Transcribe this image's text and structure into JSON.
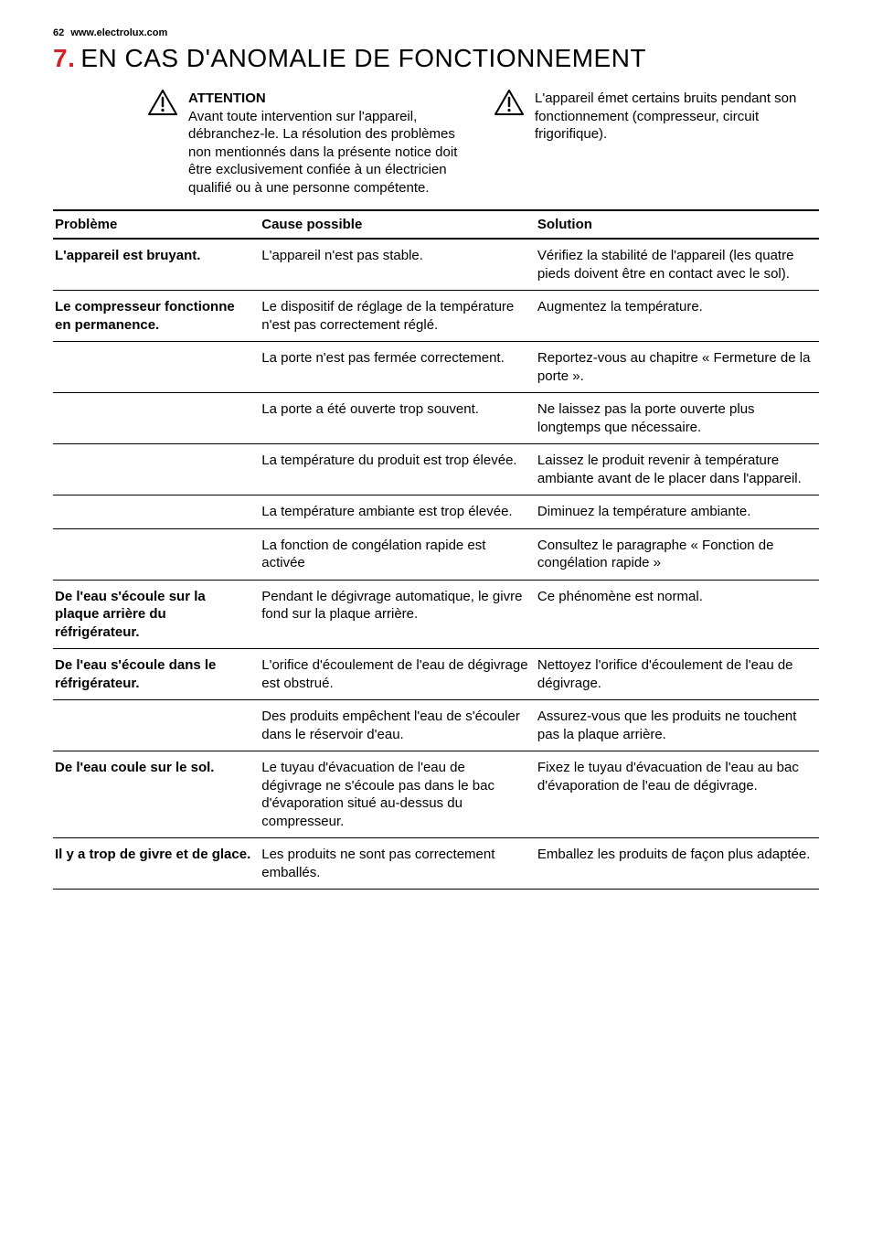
{
  "header": {
    "page_number": "62",
    "site": "www.electrolux.com"
  },
  "title": {
    "number": "7.",
    "text": "EN CAS D'ANOMALIE DE FONCTIONNEMENT"
  },
  "intro": {
    "left": {
      "heading": "ATTENTION",
      "body": "Avant toute intervention sur l'appareil, débranchez-le.\nLa résolution des problèmes non mentionnés dans la présente notice doit être exclusivement confiée à un électricien qualifié ou à une personne compétente."
    },
    "right": {
      "body": "L'appareil émet certains bruits pendant son fonctionnement (compresseur, circuit frigorifique)."
    }
  },
  "table": {
    "headers": {
      "problem": "Problème",
      "cause": "Cause possible",
      "solution": "Solution"
    },
    "rows": [
      {
        "problem": "L'appareil est bruyant.",
        "cause": "L'appareil n'est pas stable.",
        "solution": "Vérifiez la stabilité de l'appareil (les quatre pieds doivent être en contact avec le sol)."
      },
      {
        "problem": "Le compresseur fonctionne en permanence.",
        "cause": "Le dispositif de réglage de la température n'est pas correctement réglé.",
        "solution": "Augmentez la température."
      },
      {
        "problem": "",
        "cause": "La porte n'est pas fermée correctement.",
        "solution": "Reportez-vous au chapitre « Fermeture de la porte »."
      },
      {
        "problem": "",
        "cause": "La porte a été ouverte trop souvent.",
        "solution": "Ne laissez pas la porte ouverte plus longtemps que nécessaire."
      },
      {
        "problem": "",
        "cause": "La température du produit est trop élevée.",
        "solution": "Laissez le produit revenir à température ambiante avant de le placer dans l'appareil."
      },
      {
        "problem": "",
        "cause": "La température ambiante est trop élevée.",
        "solution": "Diminuez la température ambiante."
      },
      {
        "problem": "",
        "cause": "La fonction de congélation rapide est activée",
        "solution": "Consultez le paragraphe « Fonction de congélation rapide »"
      },
      {
        "problem": "De l'eau s'écoule sur la plaque arrière du réfrigérateur.",
        "cause": "Pendant le dégivrage automatique, le givre fond sur la plaque arrière.",
        "solution": "Ce phénomène est normal."
      },
      {
        "problem": "De l'eau s'écoule dans le réfrigérateur.",
        "cause": "L'orifice d'écoulement de l'eau de dégivrage est obstrué.",
        "solution": "Nettoyez l'orifice d'écoulement de l'eau de dégivrage."
      },
      {
        "problem": "",
        "cause": "Des produits empêchent l'eau de s'écouler dans le réservoir d'eau.",
        "solution": "Assurez-vous que les produits ne touchent pas la plaque arrière."
      },
      {
        "problem": "De l'eau coule sur le sol.",
        "cause": "Le tuyau d'évacuation de l'eau de dégivrage ne s'écoule pas dans le bac d'évaporation situé au-dessus du compresseur.",
        "solution": "Fixez le tuyau d'évacuation de l'eau au bac d'évaporation de l'eau de dégivrage."
      },
      {
        "problem": "Il y a trop de givre et de glace.",
        "cause": "Les produits ne sont pas correctement emballés.",
        "solution": "Emballez les produits de façon plus adaptée."
      }
    ]
  },
  "colors": {
    "accent": "#d2232a",
    "text": "#000000",
    "background": "#ffffff"
  }
}
